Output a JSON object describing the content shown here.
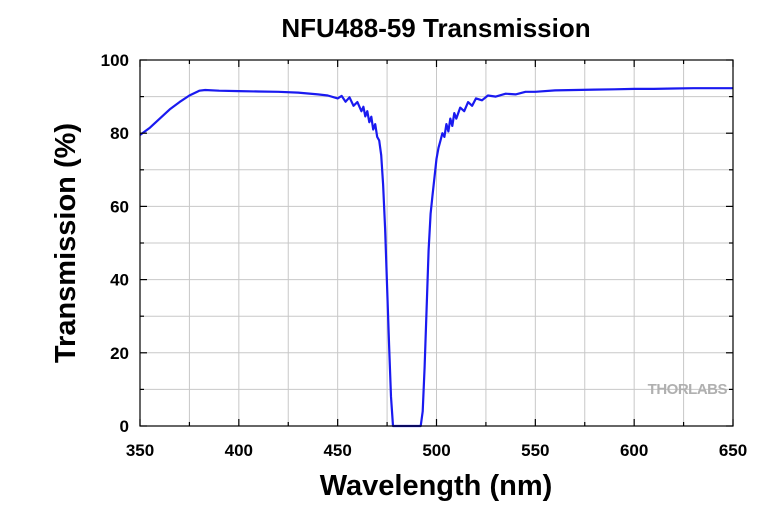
{
  "chart_data": {
    "type": "line",
    "title": "NFU488-59 Transmission",
    "xlabel": "Wavelength (nm)",
    "ylabel": "Transmission (%)",
    "xlim": [
      350,
      650
    ],
    "ylim": [
      0,
      100
    ],
    "xticks": [
      350,
      400,
      450,
      500,
      550,
      600,
      650
    ],
    "yticks": [
      0,
      20,
      40,
      60,
      80,
      100
    ],
    "grid": true,
    "colors": {
      "series": "#1a1af0",
      "grid": "#c8c8c8",
      "watermark": "#b0b0b0"
    },
    "watermark": "THORLABS",
    "series": [
      {
        "x": [
          350,
          355,
          360,
          365,
          370,
          375,
          380,
          383,
          390,
          400,
          410,
          420,
          430,
          440,
          445,
          450,
          452,
          454,
          456,
          458,
          460,
          462,
          463,
          464,
          465,
          466,
          467,
          468,
          469,
          470,
          471,
          472,
          473,
          474,
          475,
          476,
          477,
          478,
          479,
          480,
          485,
          490,
          492,
          493,
          494,
          495,
          496,
          497,
          498,
          499,
          500,
          501,
          502,
          503,
          504,
          505,
          506,
          507,
          508,
          509,
          510,
          512,
          514,
          516,
          518,
          520,
          523,
          526,
          530,
          535,
          540,
          545,
          550,
          560,
          570,
          580,
          590,
          600,
          610,
          620,
          630,
          640,
          650
        ],
        "y": [
          79.5,
          81.5,
          84,
          86.5,
          88.5,
          90.3,
          91.6,
          91.8,
          91.6,
          91.5,
          91.4,
          91.3,
          91.1,
          90.6,
          90.3,
          89.5,
          90.2,
          88.6,
          89.8,
          87.5,
          88.5,
          86,
          87.2,
          84.6,
          86,
          83,
          84.5,
          81,
          82.5,
          79,
          78,
          74,
          66,
          54,
          38,
          22,
          8,
          0,
          0,
          0,
          0,
          0,
          0,
          4,
          16,
          32,
          48,
          58,
          63,
          68,
          73,
          76,
          78,
          80,
          79,
          82.5,
          80.5,
          84,
          82,
          85.5,
          84,
          87,
          86,
          88.5,
          87.5,
          89.5,
          89,
          90.3,
          90,
          90.8,
          90.6,
          91.3,
          91.3,
          91.7,
          91.8,
          91.9,
          92,
          92.1,
          92.1,
          92.2,
          92.3,
          92.3,
          92.3
        ]
      }
    ]
  }
}
